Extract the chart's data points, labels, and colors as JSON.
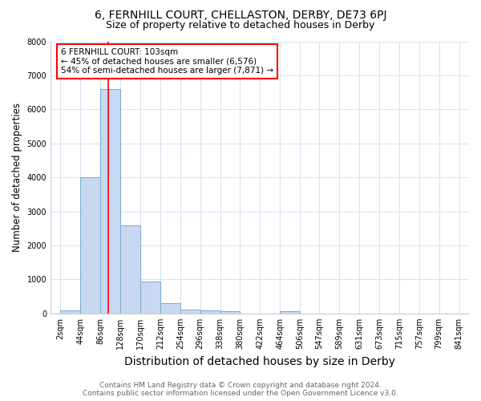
{
  "title": "6, FERNHILL COURT, CHELLASTON, DERBY, DE73 6PJ",
  "subtitle": "Size of property relative to detached houses in Derby",
  "xlabel": "Distribution of detached houses by size in Derby",
  "ylabel": "Number of detached properties",
  "footer_line1": "Contains HM Land Registry data © Crown copyright and database right 2024.",
  "footer_line2": "Contains public sector information licensed under the Open Government Licence v3.0.",
  "annotation_line1": "6 FERNHILL COURT: 103sqm",
  "annotation_line2": "← 45% of detached houses are smaller (6,576)",
  "annotation_line3": "54% of semi-detached houses are larger (7,871) →",
  "bin_edges": [
    2,
    44,
    86,
    128,
    170,
    212,
    254,
    296,
    338,
    380,
    422,
    464,
    506,
    547,
    589,
    631,
    673,
    715,
    757,
    799,
    841
  ],
  "bar_heights": [
    100,
    4000,
    6600,
    2600,
    950,
    310,
    125,
    80,
    65,
    0,
    0,
    65,
    0,
    0,
    0,
    0,
    0,
    0,
    0,
    0
  ],
  "bar_color": "#c8d8f0",
  "bar_edge_color": "#7aaad0",
  "red_line_x": 103,
  "ylim": [
    0,
    8000
  ],
  "yticks": [
    0,
    1000,
    2000,
    3000,
    4000,
    5000,
    6000,
    7000,
    8000
  ],
  "background_color": "#ffffff",
  "grid_color": "#d8e4f0",
  "title_fontsize": 10,
  "subtitle_fontsize": 9,
  "xlabel_fontsize": 10,
  "ylabel_fontsize": 8.5,
  "tick_fontsize": 7,
  "footer_fontsize": 6.5
}
